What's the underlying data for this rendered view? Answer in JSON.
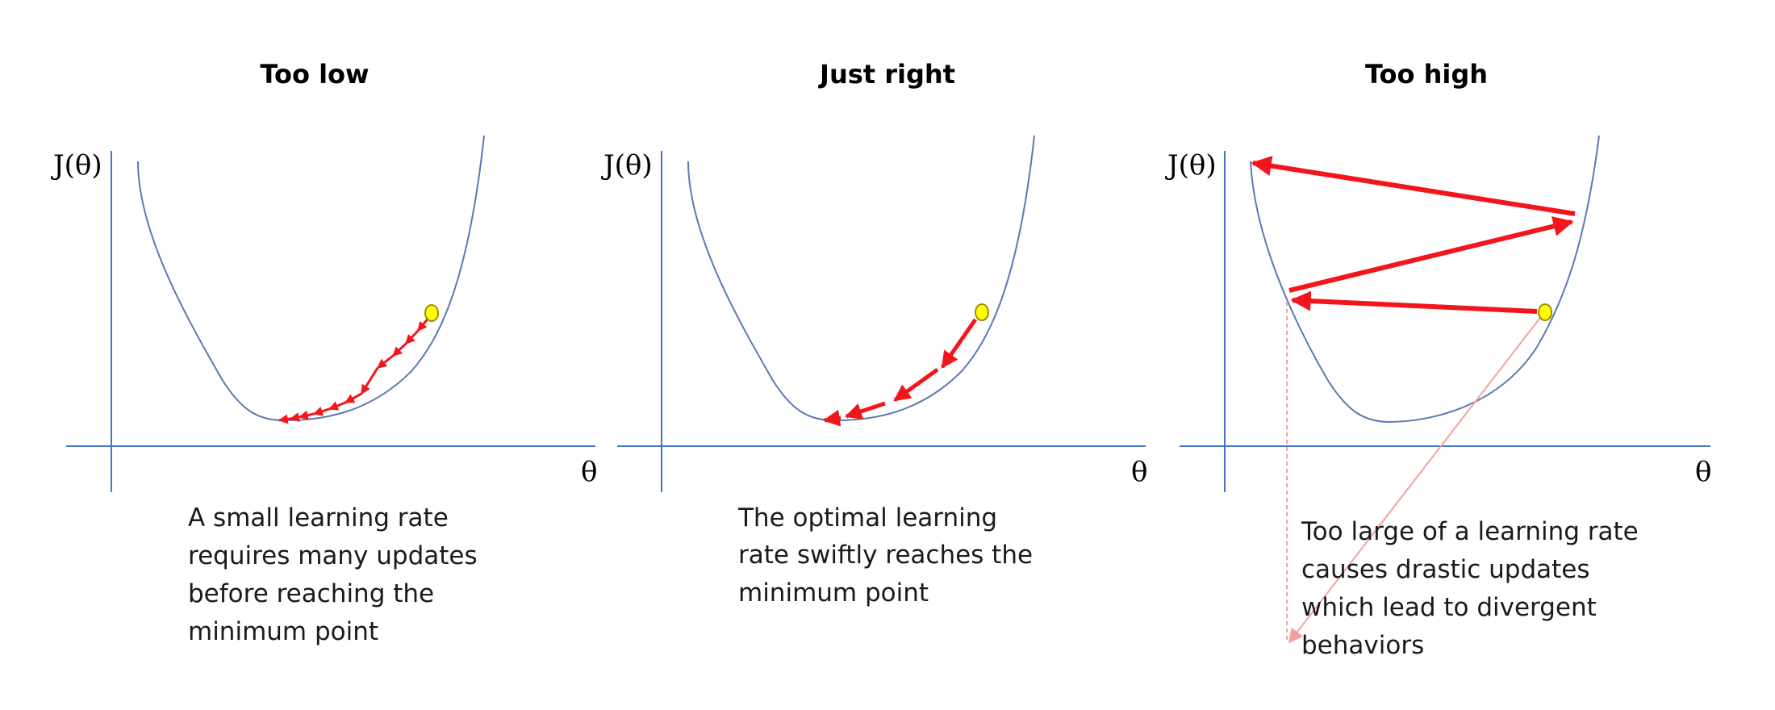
{
  "colors": {
    "axis": "#4472c4",
    "curve": "#5b79b2",
    "arrow": "#f2161c",
    "ball_fill": "#ffff00",
    "ball_stroke": "#a08a00",
    "projection": "#f5a0a0"
  },
  "panels": [
    {
      "title": "Too low",
      "y_label": "J(θ)",
      "x_label": "θ",
      "caption": [
        "A small learning rate",
        "requires many updates",
        "before reaching the",
        "minimum point"
      ]
    },
    {
      "title": "Just right",
      "y_label": "J(θ)",
      "x_label": "θ",
      "caption": [
        "The optimal learning",
        "rate swiftly reaches the",
        "minimum point"
      ]
    },
    {
      "title": "Too high",
      "y_label": "J(θ)",
      "x_label": "θ",
      "caption": [
        "Too large of a learning rate",
        "causes drastic updates",
        "which lead to divergent",
        "behaviors"
      ]
    }
  ]
}
